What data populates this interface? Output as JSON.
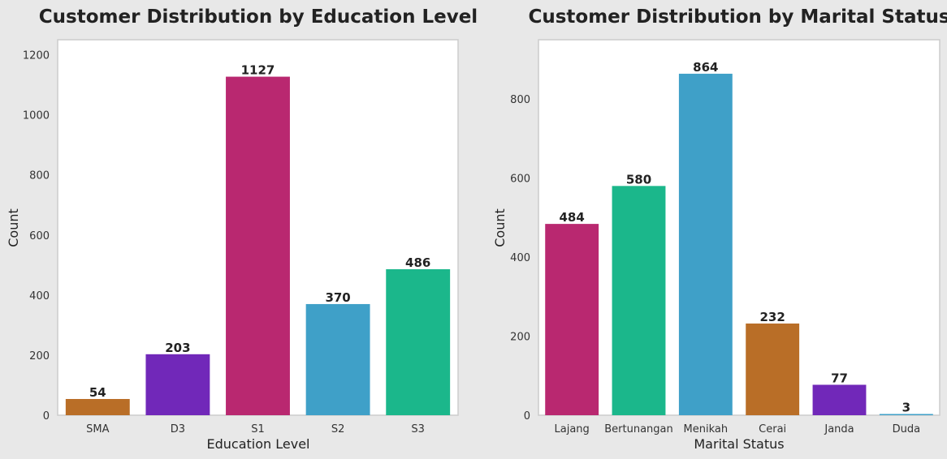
{
  "chart_data": [
    {
      "type": "bar",
      "title": "Customer Distribution by Education Level",
      "xlabel": "Education Level",
      "ylabel": "Count",
      "ylim": [
        0,
        1250
      ],
      "yticks": [
        0,
        200,
        400,
        600,
        800,
        1000,
        1200
      ],
      "grid": false,
      "categories": [
        "SMA",
        "D3",
        "S1",
        "S2",
        "S3"
      ],
      "values": [
        54,
        203,
        1127,
        370,
        486
      ],
      "colors": [
        "#b96e27",
        "#7128b9",
        "#b92870",
        "#3fa0c8",
        "#1bb78b"
      ]
    },
    {
      "type": "bar",
      "title": "Customer Distribution by Marital Status",
      "xlabel": "Marital Status",
      "ylabel": "Count",
      "ylim": [
        0,
        950
      ],
      "yticks": [
        0,
        200,
        400,
        600,
        800
      ],
      "grid": false,
      "categories": [
        "Lajang",
        "Bertunangan",
        "Menikah",
        "Cerai",
        "Janda",
        "Duda"
      ],
      "values": [
        484,
        580,
        864,
        232,
        77,
        3
      ],
      "colors": [
        "#b92870",
        "#1bb78b",
        "#3fa0c8",
        "#b96e27",
        "#7128b9",
        "#3fa0c8"
      ]
    }
  ]
}
